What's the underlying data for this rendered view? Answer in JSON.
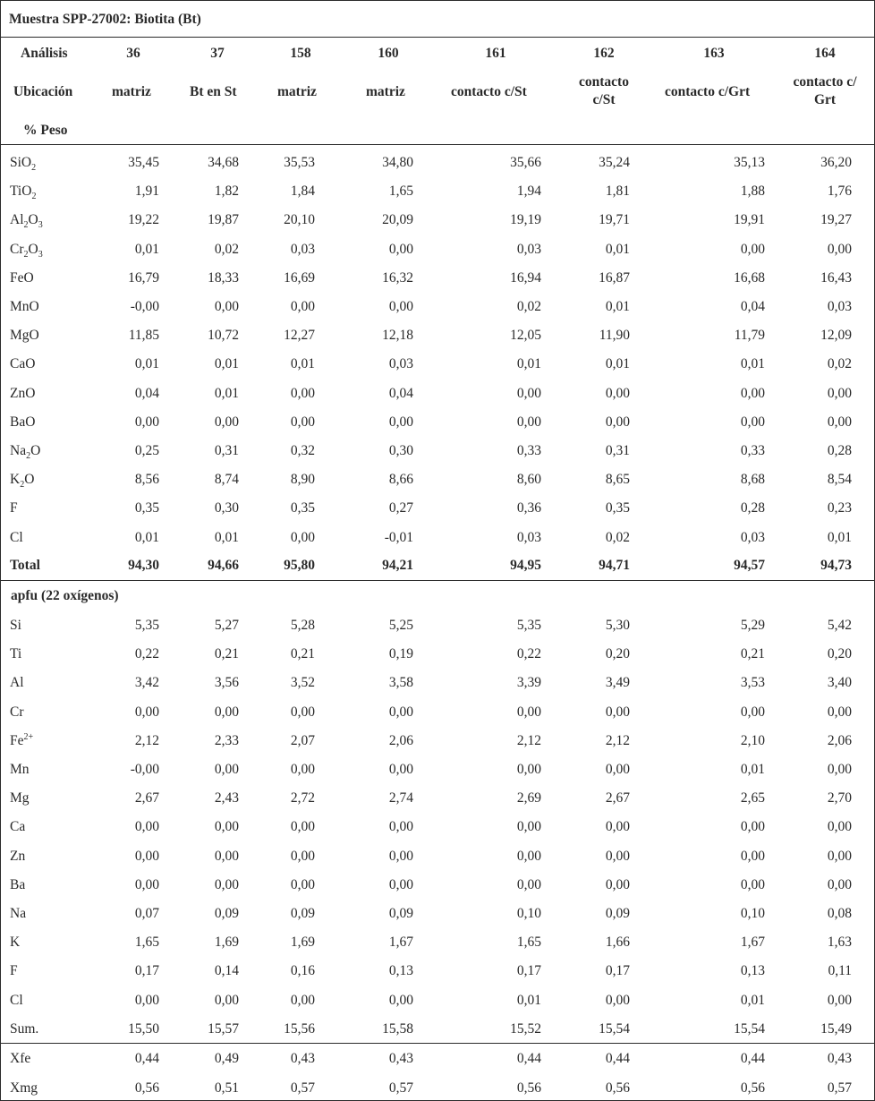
{
  "title": "Muestra SPP-27002: Biotita (Bt)",
  "header": {
    "analisis_label": "Análisis",
    "ubicacion_label": "Ubicación",
    "peso_label": "% Peso",
    "columns": [
      {
        "analisis": "36",
        "ubicacion": "matriz"
      },
      {
        "analisis": "37",
        "ubicacion": "Bt en St"
      },
      {
        "analisis": "158",
        "ubicacion": "matriz"
      },
      {
        "analisis": "160",
        "ubicacion": "matriz"
      },
      {
        "analisis": "161",
        "ubicacion": "contacto c/St"
      },
      {
        "analisis": "162",
        "ubicacion_l1": "contacto",
        "ubicacion_l2": "c/St"
      },
      {
        "analisis": "163",
        "ubicacion": "contacto c/Grt"
      },
      {
        "analisis": "164",
        "ubicacion_l1": "contacto c/",
        "ubicacion_l2": "Grt"
      }
    ]
  },
  "oxides": [
    {
      "label_main": "SiO",
      "label_sub": "2",
      "values": [
        "35,45",
        "34,68",
        "35,53",
        "34,80",
        "35,66",
        "35,24",
        "35,13",
        "36,20"
      ]
    },
    {
      "label_main": "TiO",
      "label_sub": "2",
      "values": [
        "1,91",
        "1,82",
        "1,84",
        "1,65",
        "1,94",
        "1,81",
        "1,88",
        "1,76"
      ]
    },
    {
      "label_parts": [
        "Al",
        "2",
        "O",
        "3"
      ],
      "values": [
        "19,22",
        "19,87",
        "20,10",
        "20,09",
        "19,19",
        "19,71",
        "19,91",
        "19,27"
      ]
    },
    {
      "label_parts": [
        "Cr",
        "2",
        "O",
        "3"
      ],
      "values": [
        "0,01",
        "0,02",
        "0,03",
        "0,00",
        "0,03",
        "0,01",
        "0,00",
        "0,00"
      ]
    },
    {
      "label": "FeO",
      "values": [
        "16,79",
        "18,33",
        "16,69",
        "16,32",
        "16,94",
        "16,87",
        "16,68",
        "16,43"
      ]
    },
    {
      "label": "MnO",
      "values": [
        "-0,00",
        "0,00",
        "0,00",
        "0,00",
        "0,02",
        "0,01",
        "0,04",
        "0,03"
      ]
    },
    {
      "label": "MgO",
      "values": [
        "11,85",
        "10,72",
        "12,27",
        "12,18",
        "12,05",
        "11,90",
        "11,79",
        "12,09"
      ]
    },
    {
      "label": "CaO",
      "values": [
        "0,01",
        "0,01",
        "0,01",
        "0,03",
        "0,01",
        "0,01",
        "0,01",
        "0,02"
      ]
    },
    {
      "label": "ZnO",
      "values": [
        "0,04",
        "0,01",
        "0,00",
        "0,04",
        "0,00",
        "0,00",
        "0,00",
        "0,00"
      ]
    },
    {
      "label": "BaO",
      "values": [
        "0,00",
        "0,00",
        "0,00",
        "0,00",
        "0,00",
        "0,00",
        "0,00",
        "0,00"
      ]
    },
    {
      "label_parts": [
        "Na",
        "2",
        "O",
        ""
      ],
      "values": [
        "0,25",
        "0,31",
        "0,32",
        "0,30",
        "0,33",
        "0,31",
        "0,33",
        "0,28"
      ]
    },
    {
      "label_parts": [
        "K",
        "2",
        "O",
        ""
      ],
      "values": [
        "8,56",
        "8,74",
        "8,90",
        "8,66",
        "8,60",
        "8,65",
        "8,68",
        "8,54"
      ]
    },
    {
      "label": "F",
      "values": [
        "0,35",
        "0,30",
        "0,35",
        "0,27",
        "0,36",
        "0,35",
        "0,28",
        "0,23"
      ]
    },
    {
      "label": "Cl",
      "values": [
        "0,01",
        "0,01",
        "0,00",
        "-0,01",
        "0,03",
        "0,02",
        "0,03",
        "0,01"
      ]
    }
  ],
  "total": {
    "label": "Total",
    "values": [
      "94,30",
      "94,66",
      "95,80",
      "94,21",
      "94,95",
      "94,71",
      "94,57",
      "94,73"
    ]
  },
  "apfu_label": "apfu (22 oxígenos)",
  "apfu": [
    {
      "label": "Si",
      "values": [
        "5,35",
        "5,27",
        "5,28",
        "5,25",
        "5,35",
        "5,30",
        "5,29",
        "5,42"
      ]
    },
    {
      "label": "Ti",
      "values": [
        "0,22",
        "0,21",
        "0,21",
        "0,19",
        "0,22",
        "0,20",
        "0,21",
        "0,20"
      ]
    },
    {
      "label": "Al",
      "values": [
        "3,42",
        "3,56",
        "3,52",
        "3,58",
        "3,39",
        "3,49",
        "3,53",
        "3,40"
      ]
    },
    {
      "label": "Cr",
      "values": [
        "0,00",
        "0,00",
        "0,00",
        "0,00",
        "0,00",
        "0,00",
        "0,00",
        "0,00"
      ]
    },
    {
      "label": "Fe",
      "label_sup": "2+",
      "values": [
        "2,12",
        "2,33",
        "2,07",
        "2,06",
        "2,12",
        "2,12",
        "2,10",
        "2,06"
      ]
    },
    {
      "label": "Mn",
      "values": [
        "-0,00",
        "0,00",
        "0,00",
        "0,00",
        "0,00",
        "0,00",
        "0,01",
        "0,00"
      ]
    },
    {
      "label": "Mg",
      "values": [
        "2,67",
        "2,43",
        "2,72",
        "2,74",
        "2,69",
        "2,67",
        "2,65",
        "2,70"
      ]
    },
    {
      "label": "Ca",
      "values": [
        "0,00",
        "0,00",
        "0,00",
        "0,00",
        "0,00",
        "0,00",
        "0,00",
        "0,00"
      ]
    },
    {
      "label": "Zn",
      "values": [
        "0,00",
        "0,00",
        "0,00",
        "0,00",
        "0,00",
        "0,00",
        "0,00",
        "0,00"
      ]
    },
    {
      "label": "Ba",
      "values": [
        "0,00",
        "0,00",
        "0,00",
        "0,00",
        "0,00",
        "0,00",
        "0,00",
        "0,00"
      ]
    },
    {
      "label": "Na",
      "values": [
        "0,07",
        "0,09",
        "0,09",
        "0,09",
        "0,10",
        "0,09",
        "0,10",
        "0,08"
      ]
    },
    {
      "label": "K",
      "values": [
        "1,65",
        "1,69",
        "1,69",
        "1,67",
        "1,65",
        "1,66",
        "1,67",
        "1,63"
      ]
    },
    {
      "label": "F",
      "values": [
        "0,17",
        "0,14",
        "0,16",
        "0,13",
        "0,17",
        "0,17",
        "0,13",
        "0,11"
      ]
    },
    {
      "label": "Cl",
      "values": [
        "0,00",
        "0,00",
        "0,00",
        "0,00",
        "0,01",
        "0,00",
        "0,01",
        "0,00"
      ]
    },
    {
      "label": "Sum.",
      "values": [
        "15,50",
        "15,57",
        "15,56",
        "15,58",
        "15,52",
        "15,54",
        "15,54",
        "15,49"
      ]
    }
  ],
  "ratios": [
    {
      "label": "Xfe",
      "values": [
        "0,44",
        "0,49",
        "0,43",
        "0,43",
        "0,44",
        "0,44",
        "0,44",
        "0,43"
      ]
    },
    {
      "label": "Xmg",
      "values": [
        "0,56",
        "0,51",
        "0,57",
        "0,57",
        "0,56",
        "0,56",
        "0,56",
        "0,57"
      ]
    }
  ]
}
